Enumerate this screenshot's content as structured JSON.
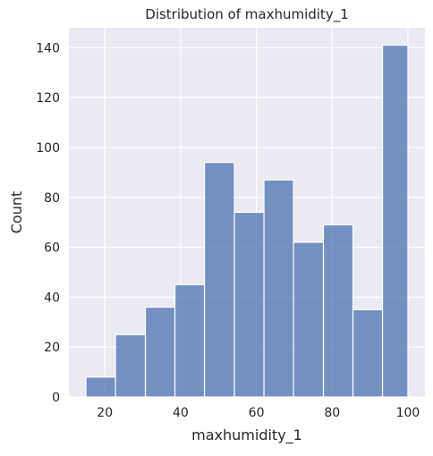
{
  "chart_data": {
    "type": "histogram",
    "title": "Distribution of maxhumidity_1",
    "xlabel": "maxhumidity_1",
    "ylabel": "Count",
    "xlim": [
      10.5,
      104.5
    ],
    "ylim": [
      0,
      148
    ],
    "xticks": [
      20,
      40,
      60,
      80,
      100
    ],
    "yticks": [
      0,
      20,
      40,
      60,
      80,
      100,
      120,
      140
    ],
    "bins": [
      {
        "x0": 15.0,
        "x1": 22.8,
        "count": 8
      },
      {
        "x0": 22.8,
        "x1": 30.7,
        "count": 25
      },
      {
        "x0": 30.7,
        "x1": 38.5,
        "count": 36
      },
      {
        "x0": 38.5,
        "x1": 46.3,
        "count": 45
      },
      {
        "x0": 46.3,
        "x1": 54.2,
        "count": 94
      },
      {
        "x0": 54.2,
        "x1": 62.0,
        "count": 74
      },
      {
        "x0": 62.0,
        "x1": 69.8,
        "count": 87
      },
      {
        "x0": 69.8,
        "x1": 77.7,
        "count": 62
      },
      {
        "x0": 77.7,
        "x1": 85.5,
        "count": 69
      },
      {
        "x0": 85.5,
        "x1": 93.3,
        "count": 35
      },
      {
        "x0": 93.3,
        "x1": 100.0,
        "count": 141
      }
    ],
    "grid": true,
    "bar_color": "#4c72b0",
    "background_color": "#eaeaf2",
    "grid_color": "#ffffff"
  }
}
